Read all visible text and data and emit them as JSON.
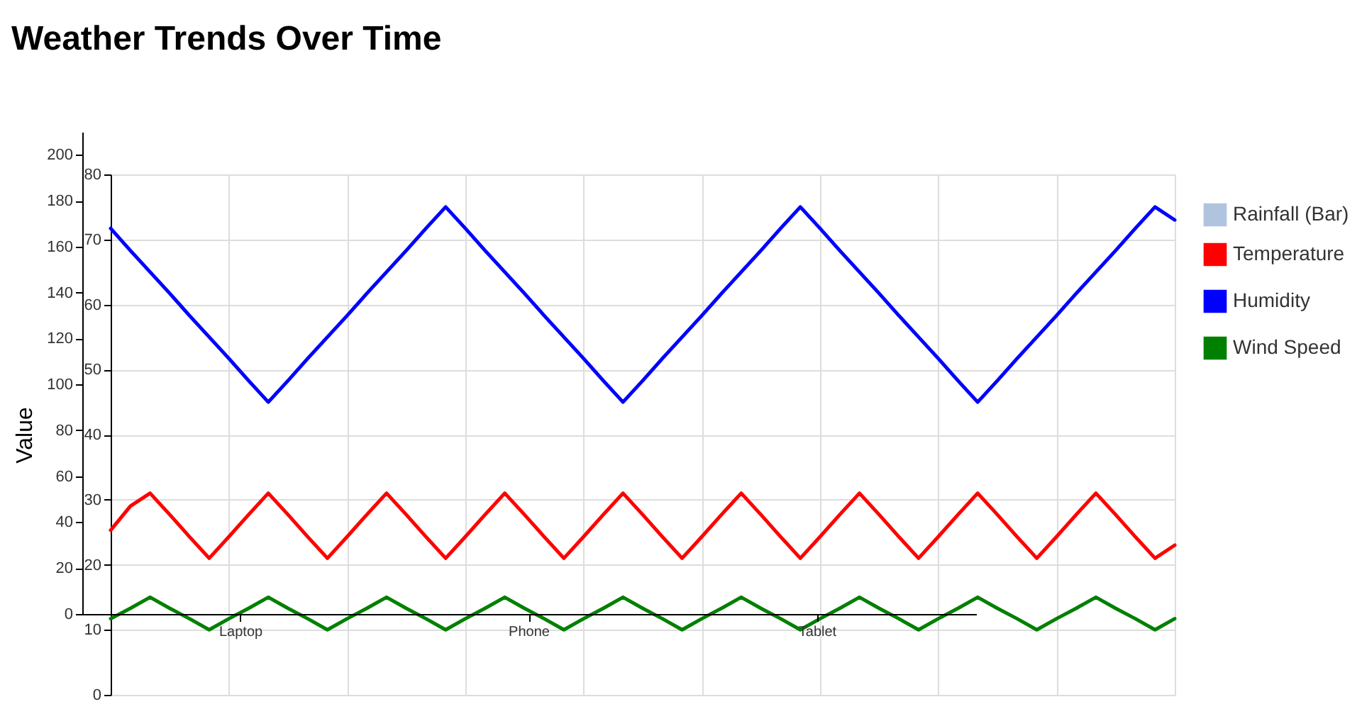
{
  "chart_data": [
    {
      "type": "line",
      "title": "Weather Trends Over Time",
      "ylabel": "Value",
      "categories": [
        null,
        null,
        null,
        null,
        null,
        null,
        null,
        null,
        null,
        null,
        null,
        null,
        null,
        null,
        null,
        null,
        null,
        null,
        null,
        null,
        null,
        null,
        null,
        null,
        null,
        null,
        null,
        null,
        null,
        null,
        null,
        null,
        null,
        null,
        null,
        null,
        null,
        null,
        null,
        null,
        null,
        null,
        null,
        null,
        null,
        null,
        null,
        null,
        null,
        null,
        null,
        null,
        null,
        null,
        null
      ],
      "series": [
        {
          "name": "Temperature",
          "color": "#ff0000",
          "values": [
            25.3,
            29,
            31,
            27.7,
            24.3,
            21,
            24.3,
            27.7,
            31,
            27.7,
            24.3,
            21,
            24.3,
            27.7,
            31,
            27.7,
            24.3,
            21,
            24.3,
            27.7,
            31,
            27.7,
            24.3,
            21,
            24.3,
            27.7,
            31,
            27.7,
            24.3,
            21,
            24.3,
            27.7,
            31,
            27.7,
            24.3,
            21,
            24.3,
            27.7,
            31,
            27.7,
            24.3,
            21,
            24.3,
            27.7,
            31,
            27.7,
            24.3,
            21,
            24.3,
            27.7,
            31,
            27.7,
            24.3,
            21,
            23
          ]
        },
        {
          "name": "Humidity",
          "color": "#0000ff",
          "values": [
            71.7,
            68.3,
            65,
            61.7,
            58.3,
            55,
            51.7,
            48.3,
            45,
            48.3,
            51.7,
            55,
            58.3,
            61.7,
            65,
            68.3,
            71.7,
            75,
            71.7,
            68.3,
            65,
            61.7,
            58.3,
            55,
            51.7,
            48.3,
            45,
            48.3,
            51.7,
            55,
            58.3,
            61.7,
            65,
            68.3,
            71.7,
            75,
            71.7,
            68.3,
            65,
            61.7,
            58.3,
            55,
            51.7,
            48.3,
            45,
            48.3,
            51.7,
            55,
            58.3,
            61.7,
            65,
            68.3,
            71.7,
            75,
            73
          ]
        },
        {
          "name": "Wind Speed",
          "color": "#008000",
          "values": [
            11.7,
            13.3,
            15,
            13.3,
            11.7,
            10,
            11.7,
            13.3,
            15,
            13.3,
            11.7,
            10,
            11.7,
            13.3,
            15,
            13.3,
            11.7,
            10,
            11.7,
            13.3,
            15,
            13.3,
            11.7,
            10,
            11.7,
            13.3,
            15,
            13.3,
            11.7,
            10,
            11.7,
            13.3,
            15,
            13.3,
            11.7,
            10,
            11.7,
            13.3,
            15,
            13.3,
            11.7,
            10,
            11.7,
            13.3,
            15,
            13.3,
            11.7,
            10,
            11.7,
            13.3,
            15,
            13.3,
            11.7,
            10,
            11.7
          ]
        }
      ],
      "ylim": [
        0,
        80
      ],
      "yticks": [
        0,
        10,
        20,
        30,
        40,
        50,
        60,
        70,
        80
      ],
      "grid": true,
      "legend": "right",
      "tick_labels": "y"
    },
    {
      "type": "bar",
      "categories": [
        "Laptop",
        "Phone",
        "Tablet"
      ],
      "series": [
        {
          "name": "Rainfall (Bar)",
          "color": "#b0c4de",
          "values": [
            0,
            0,
            0
          ]
        }
      ],
      "ylim": [
        0,
        210
      ],
      "yticks": [
        0,
        20,
        40,
        60,
        80,
        100,
        120,
        140,
        160,
        180,
        200
      ],
      "legend": "right"
    }
  ]
}
